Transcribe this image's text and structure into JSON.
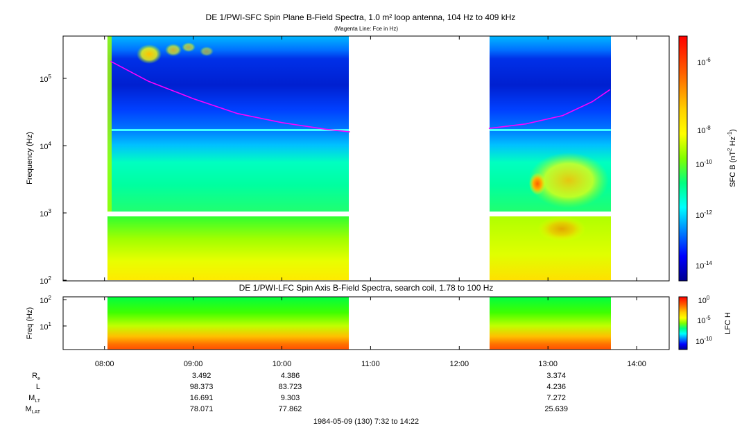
{
  "colors": {
    "magenta_line": "#ff00ff",
    "background": "#ffffff",
    "colormap": [
      "#00008f",
      "#0000ff",
      "#0080ff",
      "#00ffff",
      "#00ff80",
      "#80ff00",
      "#ffff00",
      "#ff8000",
      "#ff0000"
    ]
  },
  "chart_data": [
    {
      "type": "heatmap",
      "title": "DE 1/PWI-SFC  Spin Plane B-Field Spectra, 1.0 m² loop antenna, 104 Hz to 409 kHz",
      "subtitle": "(Magenta Line: Fce in Hz)",
      "ylabel": "Frequency (Hz)",
      "yscale": "log",
      "ylim": [
        100,
        409000
      ],
      "y_ticks": [
        {
          "value": 100,
          "base": "10",
          "exp": "2"
        },
        {
          "value": 1000,
          "base": "10",
          "exp": "3"
        },
        {
          "value": 10000,
          "base": "10",
          "exp": "4"
        },
        {
          "value": 100000,
          "base": "10",
          "exp": "5"
        }
      ],
      "colorbar": {
        "label": "SFC B (nT",
        "label_exp1": "2",
        "label_mid": " Hz",
        "label_exp2": "-1",
        "label_end": ")",
        "scale": "log",
        "range": [
          1e-15,
          1e-05
        ],
        "ticks": [
          {
            "value": 1e-06,
            "base": "10",
            "exp": "-6"
          },
          {
            "value": 1e-08,
            "base": "10",
            "exp": "-8"
          },
          {
            "value": 1e-10,
            "base": "10",
            "exp": "-10"
          },
          {
            "value": 1e-12,
            "base": "10",
            "exp": "-12"
          },
          {
            "value": 1e-14,
            "base": "10",
            "exp": "-14"
          }
        ]
      },
      "data_intervals": [
        "08:02 – 10:46",
        "12:20 – 13:42"
      ],
      "features": {
        "sfc_gap_band_hz": [
          900,
          1050
        ],
        "cyan_line_hz": 16000,
        "blue_band_hz": [
          20000,
          60000
        ],
        "fce_line_name": "Fce",
        "fce_line_hz": [
          {
            "time": "08:04",
            "value": 180000
          },
          {
            "time": "08:30",
            "value": 90000
          },
          {
            "time": "09:00",
            "value": 50000
          },
          {
            "time": "09:30",
            "value": 30000
          },
          {
            "time": "10:00",
            "value": 22000
          },
          {
            "time": "10:30",
            "value": 17500
          },
          {
            "time": "10:46",
            "value": 16000
          },
          {
            "time": "12:20",
            "value": 18000
          },
          {
            "time": "12:45",
            "value": 21000
          },
          {
            "time": "13:10",
            "value": 28000
          },
          {
            "time": "13:30",
            "value": 45000
          },
          {
            "time": "13:42",
            "value": 68000
          }
        ]
      }
    },
    {
      "type": "heatmap",
      "title": "DE 1/PWI-LFC  Spin Axis B-Field Spectra, search coil, 1.78 to 100 Hz",
      "ylabel": "Freq (Hz)",
      "yscale": "log",
      "ylim": [
        1.78,
        100
      ],
      "y_ticks": [
        {
          "value": 10,
          "base": "10",
          "exp": "1"
        },
        {
          "value": 100,
          "base": "10",
          "exp": "2"
        }
      ],
      "colorbar": {
        "label": "LFC H",
        "scale": "log",
        "range": [
          1e-12,
          1
        ],
        "ticks": [
          {
            "value": 1,
            "base": "10",
            "exp": "0"
          },
          {
            "value": 1e-05,
            "base": "10",
            "exp": "-5"
          },
          {
            "value": 1e-10,
            "base": "10",
            "exp": "-10"
          }
        ]
      },
      "data_intervals": [
        "08:02 – 10:46",
        "12:20 – 13:42"
      ],
      "x_ticks": [
        "08:00",
        "09:00",
        "10:00",
        "11:00",
        "12:00",
        "13:00",
        "14:00"
      ],
      "xlim": [
        "07:32",
        "14:22"
      ],
      "xlabel": "1984-05-09 (130) 7:32 to 14:22"
    }
  ],
  "ephemeris": {
    "rows": [
      {
        "label": "R",
        "label_sub": "e",
        "values": [
          "3.492",
          "4.386",
          "3.374"
        ]
      },
      {
        "label": "L",
        "label_sub": "",
        "values": [
          "98.373",
          "83.723",
          "4.236"
        ]
      },
      {
        "label": "M",
        "label_sub": "LT",
        "values": [
          "16.691",
          "9.303",
          "7.272"
        ]
      },
      {
        "label": "M",
        "label_sub": "LAT",
        "values": [
          "78.071",
          "77.862",
          "25.639"
        ]
      }
    ],
    "columns_at": [
      "09:00",
      "10:00",
      "13:00"
    ]
  }
}
